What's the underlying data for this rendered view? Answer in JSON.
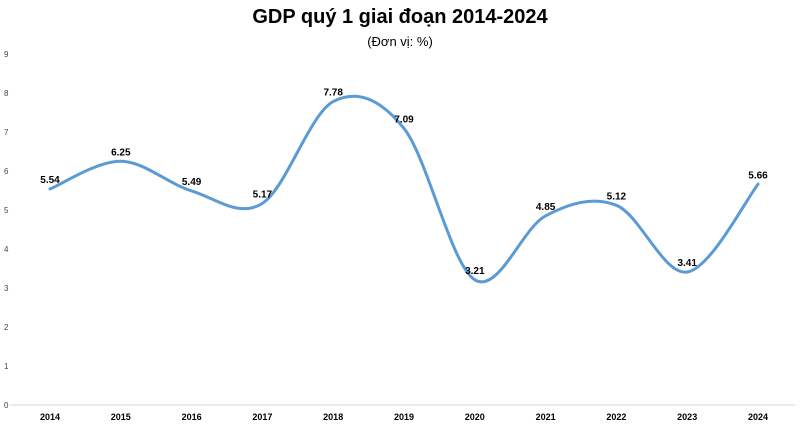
{
  "chart_data": {
    "type": "line",
    "title": "GDP quý 1 giai đoạn 2014-2024",
    "subtitle": "(Đơn vị: %)",
    "categories": [
      "2014",
      "2015",
      "2016",
      "2017",
      "2018",
      "2019",
      "2020",
      "2021",
      "2022",
      "2023",
      "2024"
    ],
    "series": [
      {
        "values": [
          5.54,
          6.25,
          5.49,
          5.17,
          7.78,
          7.09,
          3.21,
          4.85,
          5.12,
          3.41,
          5.66
        ]
      }
    ],
    "ylim": [
      0,
      9
    ],
    "yticks": [
      0,
      1,
      2,
      3,
      4,
      5,
      6,
      7,
      8,
      9
    ],
    "grid": false,
    "line_color": "#5b9bd5",
    "smooth": true,
    "data_labels": true
  }
}
